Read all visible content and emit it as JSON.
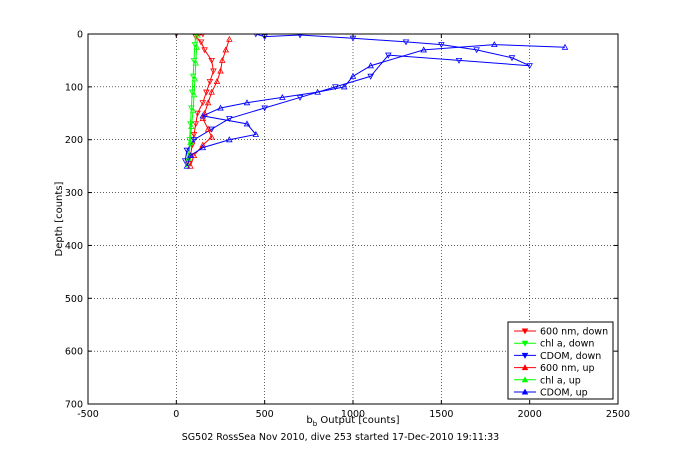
{
  "chart_data": {
    "type": "scatter",
    "caption": "SG502 RossSea Nov 2010, dive 253 started 17-Dec-2010 19:11:33",
    "xlabel_main": "b",
    "xlabel_sub": "b",
    "xlabel_rest": " Output [counts]",
    "ylabel": "Depth [counts]",
    "xlim": [
      -500,
      2500
    ],
    "ylim": [
      0,
      700
    ],
    "y_reversed": true,
    "grid": true,
    "legend_position": "bottom-right",
    "x_ticks": [
      -500,
      0,
      500,
      1000,
      1500,
      2000,
      2500
    ],
    "y_ticks": [
      0,
      100,
      200,
      300,
      400,
      500,
      600,
      700
    ],
    "series": [
      {
        "name": "600 nm, down",
        "color": "#ff0000",
        "marker": "v",
        "points": [
          [
            0,
            0
          ],
          [
            150,
            0
          ],
          [
            110,
            5
          ],
          [
            140,
            15
          ],
          [
            160,
            30
          ],
          [
            200,
            50
          ],
          [
            210,
            70
          ],
          [
            190,
            90
          ],
          [
            170,
            110
          ],
          [
            150,
            130
          ],
          [
            120,
            150
          ],
          [
            110,
            170
          ],
          [
            100,
            190
          ],
          [
            90,
            210
          ],
          [
            80,
            230
          ],
          [
            70,
            245
          ]
        ]
      },
      {
        "name": "chl a, down",
        "color": "#00ff00",
        "marker": "v",
        "points": [
          [
            110,
            0
          ],
          [
            105,
            20
          ],
          [
            100,
            50
          ],
          [
            95,
            80
          ],
          [
            90,
            110
          ],
          [
            85,
            140
          ],
          [
            80,
            170
          ],
          [
            75,
            200
          ],
          [
            70,
            230
          ],
          [
            65,
            250
          ]
        ]
      },
      {
        "name": "CDOM, down",
        "color": "#0000ff",
        "marker": "v",
        "points": [
          [
            450,
            0
          ],
          [
            500,
            5
          ],
          [
            700,
            2
          ],
          [
            1000,
            8
          ],
          [
            1300,
            15
          ],
          [
            1500,
            20
          ],
          [
            1700,
            30
          ],
          [
            1900,
            45
          ],
          [
            2000,
            60
          ],
          [
            1600,
            50
          ],
          [
            1200,
            40
          ],
          [
            1100,
            80
          ],
          [
            900,
            100
          ],
          [
            700,
            120
          ],
          [
            500,
            140
          ],
          [
            300,
            160
          ],
          [
            200,
            180
          ],
          [
            100,
            200
          ],
          [
            60,
            220
          ],
          [
            50,
            240
          ]
        ]
      },
      {
        "name": "600 nm, up",
        "color": "#ff0000",
        "marker": "^",
        "points": [
          [
            300,
            10
          ],
          [
            280,
            30
          ],
          [
            260,
            50
          ],
          [
            250,
            70
          ],
          [
            230,
            90
          ],
          [
            200,
            110
          ],
          [
            180,
            130
          ],
          [
            160,
            150
          ],
          [
            150,
            160
          ],
          [
            180,
            180
          ],
          [
            200,
            195
          ],
          [
            150,
            210
          ],
          [
            100,
            230
          ],
          [
            80,
            250
          ]
        ]
      },
      {
        "name": "chl a, up",
        "color": "#00ff00",
        "marker": "^",
        "points": [
          [
            120,
            2
          ],
          [
            115,
            25
          ],
          [
            110,
            55
          ],
          [
            105,
            85
          ],
          [
            100,
            115
          ],
          [
            95,
            145
          ],
          [
            85,
            175
          ],
          [
            80,
            205
          ],
          [
            70,
            235
          ]
        ]
      },
      {
        "name": "CDOM, up",
        "color": "#0000ff",
        "marker": "^",
        "points": [
          [
            2200,
            25
          ],
          [
            1800,
            20
          ],
          [
            1400,
            30
          ],
          [
            1100,
            60
          ],
          [
            1000,
            80
          ],
          [
            950,
            100
          ],
          [
            800,
            110
          ],
          [
            600,
            120
          ],
          [
            400,
            130
          ],
          [
            250,
            140
          ],
          [
            150,
            155
          ],
          [
            400,
            170
          ],
          [
            450,
            190
          ],
          [
            300,
            200
          ],
          [
            150,
            215
          ],
          [
            80,
            230
          ],
          [
            60,
            250
          ]
        ]
      }
    ]
  }
}
